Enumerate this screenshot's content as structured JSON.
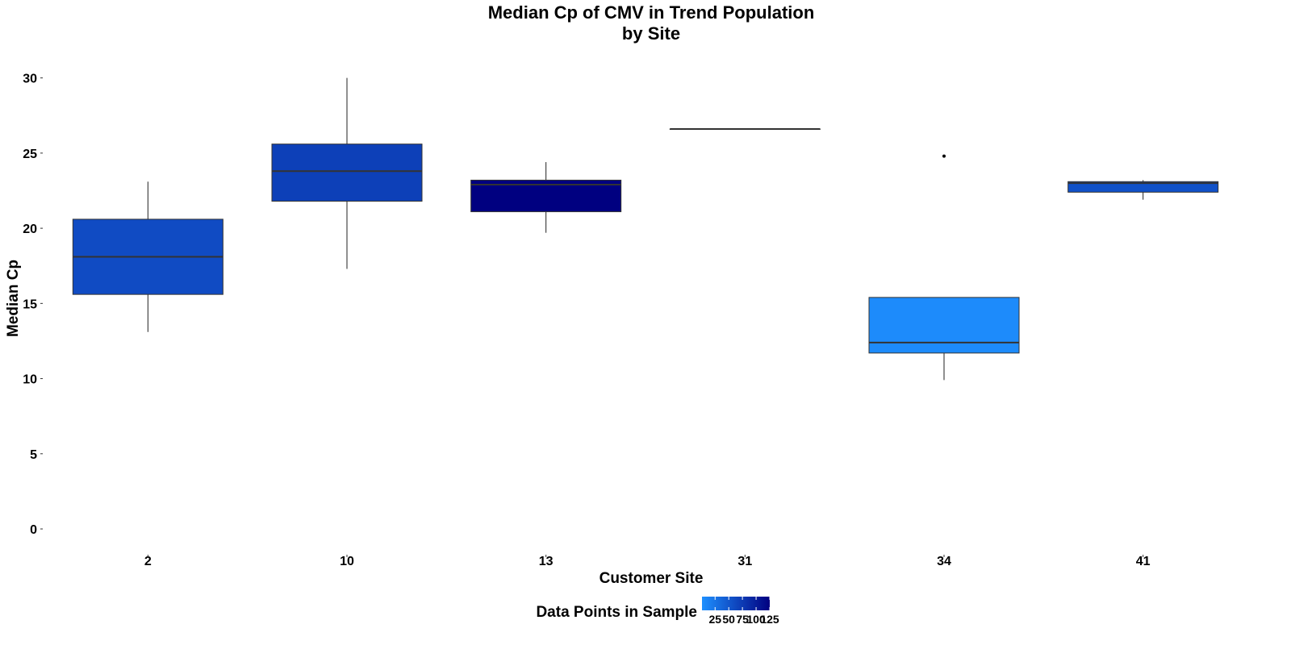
{
  "chart_data": {
    "type": "boxplot",
    "title_line1": "Median Cp of CMV in Trend Population",
    "title_line2": "by Site",
    "xlabel": "Customer Site",
    "ylabel": "Median Cp",
    "ylim": [
      -1.5,
      31
    ],
    "yticks": [
      0,
      5,
      10,
      15,
      20,
      25,
      30
    ],
    "categories": [
      "2",
      "10",
      "13",
      "31",
      "34",
      "41"
    ],
    "boxes": [
      {
        "site": "2",
        "whisker_low": 13.1,
        "q1": 15.6,
        "median": 18.1,
        "q3": 20.6,
        "whisker_high": 23.1,
        "outliers": [],
        "data_points": 60
      },
      {
        "site": "10",
        "whisker_low": 17.3,
        "q1": 21.8,
        "median": 23.8,
        "q3": 25.6,
        "whisker_high": 30.0,
        "outliers": [],
        "data_points": 70
      },
      {
        "site": "13",
        "whisker_low": 19.7,
        "q1": 21.1,
        "median": 22.9,
        "q3": 23.2,
        "whisker_high": 24.4,
        "outliers": [],
        "data_points": 125
      },
      {
        "site": "31",
        "whisker_low": 26.6,
        "q1": 26.6,
        "median": 26.6,
        "q3": 26.6,
        "whisker_high": 26.6,
        "outliers": [],
        "data_points": 1
      },
      {
        "site": "34",
        "whisker_low": 9.9,
        "q1": 11.7,
        "median": 12.4,
        "q3": 15.4,
        "whisker_high": 15.4,
        "outliers": [
          24.8
        ],
        "data_points": 5
      },
      {
        "site": "41",
        "whisker_low": 21.9,
        "q1": 22.4,
        "median": 23.0,
        "q3": 23.1,
        "whisker_high": 23.2,
        "outliers": [],
        "data_points": 55
      }
    ],
    "legend": {
      "title": "Data Points in Sample",
      "placement": "bottom",
      "range": [
        1,
        125
      ],
      "ticks": [
        25,
        50,
        75,
        100,
        125
      ],
      "tick_labels": [
        "25",
        "50",
        "75",
        "100",
        "125"
      ],
      "color_low": "#1E90FF",
      "color_high": "#000080"
    },
    "grid": false
  }
}
